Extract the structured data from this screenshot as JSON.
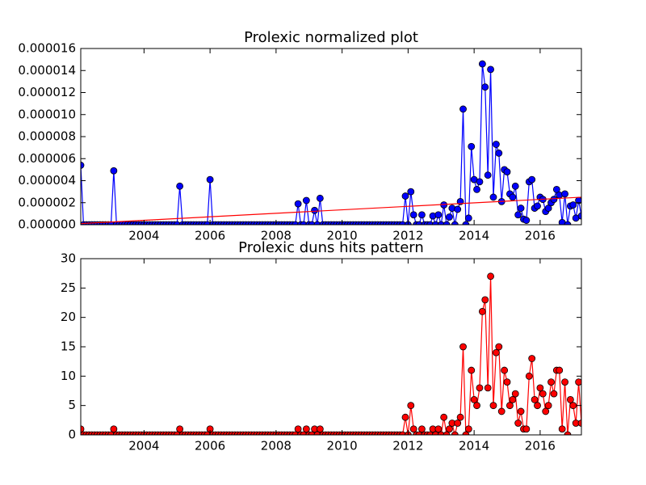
{
  "chart_data": [
    {
      "type": "line",
      "title": "Prolexic normalized plot",
      "xlim": [
        2002.083,
        2017.25
      ],
      "xticks": [
        2004,
        2006,
        2008,
        2010,
        2012,
        2014,
        2016
      ],
      "ylim": [
        0,
        1.6e-05
      ],
      "yticks": [
        {
          "value": 0,
          "label": "0.000000"
        },
        {
          "value": 2e-06,
          "label": "0.000002"
        },
        {
          "value": 4e-06,
          "label": "0.000004"
        },
        {
          "value": 6e-06,
          "label": "0.000006"
        },
        {
          "value": 8e-06,
          "label": "0.000008"
        },
        {
          "value": 1e-05,
          "label": "0.000010"
        },
        {
          "value": 1.2e-05,
          "label": "0.000012"
        },
        {
          "value": 1.4e-05,
          "label": "0.000014"
        },
        {
          "value": 1.6e-05,
          "label": "0.000016"
        }
      ],
      "x": [
        2002.083,
        2002.167,
        2002.25,
        2002.333,
        2002.417,
        2002.5,
        2002.583,
        2002.667,
        2002.75,
        2002.833,
        2002.917,
        2003,
        2003.083,
        2003.167,
        2003.25,
        2003.333,
        2003.417,
        2003.5,
        2003.583,
        2003.667,
        2003.75,
        2003.833,
        2003.917,
        2004,
        2004.083,
        2004.167,
        2004.25,
        2004.333,
        2004.417,
        2004.5,
        2004.583,
        2004.667,
        2004.75,
        2004.833,
        2004.917,
        2005,
        2005.083,
        2005.167,
        2005.25,
        2005.333,
        2005.417,
        2005.5,
        2005.583,
        2005.667,
        2005.75,
        2005.833,
        2005.917,
        2006,
        2006.083,
        2006.167,
        2006.25,
        2006.333,
        2006.417,
        2006.5,
        2006.583,
        2006.667,
        2006.75,
        2006.833,
        2006.917,
        2007,
        2007.083,
        2007.167,
        2007.25,
        2007.333,
        2007.417,
        2007.5,
        2007.583,
        2007.667,
        2007.75,
        2007.833,
        2007.917,
        2008,
        2008.083,
        2008.167,
        2008.25,
        2008.333,
        2008.417,
        2008.5,
        2008.583,
        2008.667,
        2008.75,
        2008.833,
        2008.917,
        2009,
        2009.083,
        2009.167,
        2009.25,
        2009.333,
        2009.417,
        2009.5,
        2009.583,
        2009.667,
        2009.75,
        2009.833,
        2009.917,
        2010,
        2010.083,
        2010.167,
        2010.25,
        2010.333,
        2010.417,
        2010.5,
        2010.583,
        2010.667,
        2010.75,
        2010.833,
        2010.917,
        2011,
        2011.083,
        2011.167,
        2011.25,
        2011.333,
        2011.417,
        2011.5,
        2011.583,
        2011.667,
        2011.75,
        2011.833,
        2011.917,
        2012,
        2012.083,
        2012.167,
        2012.25,
        2012.333,
        2012.417,
        2012.5,
        2012.583,
        2012.667,
        2012.75,
        2012.833,
        2012.917,
        2013,
        2013.083,
        2013.167,
        2013.25,
        2013.333,
        2013.417,
        2013.5,
        2013.583,
        2013.667,
        2013.75,
        2013.833,
        2013.917,
        2014,
        2014.083,
        2014.167,
        2014.25,
        2014.333,
        2014.417,
        2014.5,
        2014.583,
        2014.667,
        2014.75,
        2014.833,
        2014.917,
        2015,
        2015.083,
        2015.167,
        2015.25,
        2015.333,
        2015.417,
        2015.5,
        2015.583,
        2015.667,
        2015.75,
        2015.833,
        2015.917,
        2016,
        2016.083,
        2016.167,
        2016.25,
        2016.333,
        2016.417,
        2016.5,
        2016.583,
        2016.667,
        2016.75,
        2016.833,
        2016.917,
        2017,
        2017.083,
        2017.167,
        2017.25
      ],
      "series": [
        {
          "color": "#0000ff",
          "marker": "o",
          "values": [
            5.4e-06,
            0,
            0,
            0,
            0,
            0,
            0,
            0,
            0,
            0,
            0,
            0,
            4.9e-06,
            0,
            0,
            0,
            0,
            0,
            0,
            0,
            0,
            0,
            0,
            0,
            0,
            0,
            0,
            0,
            0,
            0,
            0,
            0,
            0,
            0,
            0,
            0,
            3.5e-06,
            0,
            0,
            0,
            0,
            0,
            0,
            0,
            0,
            0,
            0,
            4.1e-06,
            0,
            0,
            0,
            0,
            0,
            0,
            0,
            0,
            0,
            0,
            0,
            0,
            0,
            0,
            0,
            0,
            0,
            0,
            0,
            0,
            0,
            0,
            0,
            0,
            0,
            0,
            0,
            0,
            0,
            0,
            0,
            1.9e-06,
            0,
            0,
            2.2e-06,
            0,
            0,
            1.3e-06,
            0,
            2.4e-06,
            0,
            0,
            0,
            0,
            0,
            0,
            0,
            0,
            0,
            0,
            0,
            0,
            0,
            0,
            0,
            0,
            0,
            0,
            0,
            0,
            0,
            0,
            0,
            0,
            0,
            0,
            0,
            0,
            0,
            0,
            2.6e-06,
            0,
            3e-06,
            9e-07,
            0,
            0,
            9e-07,
            0,
            0,
            0,
            8e-07,
            0,
            9e-07,
            0,
            1.8e-06,
            0,
            7e-07,
            1.5e-06,
            0,
            1.4e-06,
            2.1e-06,
            1.05e-05,
            0,
            6e-07,
            7.1e-06,
            4.1e-06,
            3.2e-06,
            3.9e-06,
            1.46e-05,
            1.25e-05,
            4.5e-06,
            1.41e-05,
            2.5e-06,
            7.3e-06,
            6.5e-06,
            2.1e-06,
            5e-06,
            4.8e-06,
            2.8e-06,
            2.5e-06,
            3.5e-06,
            9e-07,
            1.5e-06,
            5e-07,
            4e-07,
            3.9e-06,
            4.1e-06,
            1.5e-06,
            1.7e-06,
            2.5e-06,
            2.3e-06,
            1.2e-06,
            1.5e-06,
            2e-06,
            2.3e-06,
            3.2e-06,
            2.7e-06,
            2e-07,
            2.8e-06,
            0,
            1.7e-06,
            1.8e-06,
            6e-07,
            2.2e-06,
            8e-07
          ]
        },
        {
          "color": "#ff0000",
          "x": [
            2002.083,
            2017.25
          ],
          "values": [
            1e-07,
            2.5e-06
          ]
        }
      ]
    },
    {
      "type": "line",
      "title": "Prolexic duns hits pattern",
      "xlim": [
        2002.083,
        2017.25
      ],
      "xticks": [
        2004,
        2006,
        2008,
        2010,
        2012,
        2014,
        2016
      ],
      "ylim": [
        0,
        30
      ],
      "yticks": [
        0,
        5,
        10,
        15,
        20,
        25,
        30
      ],
      "x": [
        2002.083,
        2002.167,
        2002.25,
        2002.333,
        2002.417,
        2002.5,
        2002.583,
        2002.667,
        2002.75,
        2002.833,
        2002.917,
        2003,
        2003.083,
        2003.167,
        2003.25,
        2003.333,
        2003.417,
        2003.5,
        2003.583,
        2003.667,
        2003.75,
        2003.833,
        2003.917,
        2004,
        2004.083,
        2004.167,
        2004.25,
        2004.333,
        2004.417,
        2004.5,
        2004.583,
        2004.667,
        2004.75,
        2004.833,
        2004.917,
        2005,
        2005.083,
        2005.167,
        2005.25,
        2005.333,
        2005.417,
        2005.5,
        2005.583,
        2005.667,
        2005.75,
        2005.833,
        2005.917,
        2006,
        2006.083,
        2006.167,
        2006.25,
        2006.333,
        2006.417,
        2006.5,
        2006.583,
        2006.667,
        2006.75,
        2006.833,
        2006.917,
        2007,
        2007.083,
        2007.167,
        2007.25,
        2007.333,
        2007.417,
        2007.5,
        2007.583,
        2007.667,
        2007.75,
        2007.833,
        2007.917,
        2008,
        2008.083,
        2008.167,
        2008.25,
        2008.333,
        2008.417,
        2008.5,
        2008.583,
        2008.667,
        2008.75,
        2008.833,
        2008.917,
        2009,
        2009.083,
        2009.167,
        2009.25,
        2009.333,
        2009.417,
        2009.5,
        2009.583,
        2009.667,
        2009.75,
        2009.833,
        2009.917,
        2010,
        2010.083,
        2010.167,
        2010.25,
        2010.333,
        2010.417,
        2010.5,
        2010.583,
        2010.667,
        2010.75,
        2010.833,
        2010.917,
        2011,
        2011.083,
        2011.167,
        2011.25,
        2011.333,
        2011.417,
        2011.5,
        2011.583,
        2011.667,
        2011.75,
        2011.833,
        2011.917,
        2012,
        2012.083,
        2012.167,
        2012.25,
        2012.333,
        2012.417,
        2012.5,
        2012.583,
        2012.667,
        2012.75,
        2012.833,
        2012.917,
        2013,
        2013.083,
        2013.167,
        2013.25,
        2013.333,
        2013.417,
        2013.5,
        2013.583,
        2013.667,
        2013.75,
        2013.833,
        2013.917,
        2014,
        2014.083,
        2014.167,
        2014.25,
        2014.333,
        2014.417,
        2014.5,
        2014.583,
        2014.667,
        2014.75,
        2014.833,
        2014.917,
        2015,
        2015.083,
        2015.167,
        2015.25,
        2015.333,
        2015.417,
        2015.5,
        2015.583,
        2015.667,
        2015.75,
        2015.833,
        2015.917,
        2016,
        2016.083,
        2016.167,
        2016.25,
        2016.333,
        2016.417,
        2016.5,
        2016.583,
        2016.667,
        2016.75,
        2016.833,
        2016.917,
        2017,
        2017.083,
        2017.167,
        2017.25
      ],
      "series": [
        {
          "color": "#ff0000",
          "marker": "o",
          "values": [
            1,
            0,
            0,
            0,
            0,
            0,
            0,
            0,
            0,
            0,
            0,
            0,
            1,
            0,
            0,
            0,
            0,
            0,
            0,
            0,
            0,
            0,
            0,
            0,
            0,
            0,
            0,
            0,
            0,
            0,
            0,
            0,
            0,
            0,
            0,
            0,
            1,
            0,
            0,
            0,
            0,
            0,
            0,
            0,
            0,
            0,
            0,
            1,
            0,
            0,
            0,
            0,
            0,
            0,
            0,
            0,
            0,
            0,
            0,
            0,
            0,
            0,
            0,
            0,
            0,
            0,
            0,
            0,
            0,
            0,
            0,
            0,
            0,
            0,
            0,
            0,
            0,
            0,
            0,
            1,
            0,
            0,
            1,
            0,
            0,
            1,
            0,
            1,
            0,
            0,
            0,
            0,
            0,
            0,
            0,
            0,
            0,
            0,
            0,
            0,
            0,
            0,
            0,
            0,
            0,
            0,
            0,
            0,
            0,
            0,
            0,
            0,
            0,
            0,
            0,
            0,
            0,
            0,
            3,
            0,
            5,
            1,
            0,
            0,
            1,
            0,
            0,
            0,
            1,
            0,
            1,
            0,
            3,
            0,
            1,
            2,
            0,
            2,
            3,
            15,
            0,
            1,
            11,
            6,
            5,
            8,
            21,
            23,
            8,
            27,
            5,
            14,
            15,
            4,
            11,
            9,
            5,
            6,
            7,
            2,
            4,
            1,
            1,
            10,
            13,
            6,
            5,
            8,
            7,
            4,
            5,
            9,
            7,
            11,
            11,
            1,
            9,
            0,
            6,
            5,
            2,
            9,
            2
          ]
        }
      ]
    }
  ]
}
